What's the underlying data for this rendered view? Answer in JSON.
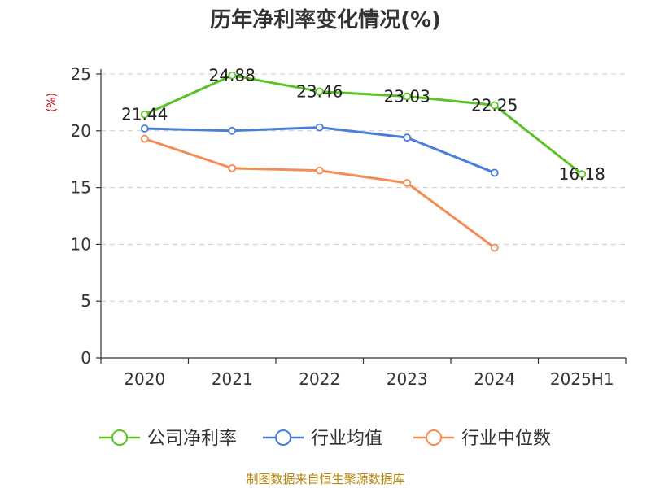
{
  "chart_data": {
    "type": "line",
    "title": "历年净利率变化情况(%)",
    "ylabel": "(%)",
    "categories": [
      "2020",
      "2021",
      "2022",
      "2023",
      "2024",
      "2025H1"
    ],
    "ylim": [
      0,
      25
    ],
    "yticks": [
      0,
      5,
      10,
      15,
      20,
      25
    ],
    "grid": true,
    "legend_position": "bottom",
    "series": [
      {
        "name": "公司净利率",
        "color": "#5bc225",
        "values": [
          21.44,
          24.88,
          23.46,
          23.03,
          22.25,
          16.18
        ],
        "show_labels": true
      },
      {
        "name": "行业均值",
        "color": "#4a7fd9",
        "values": [
          20.2,
          20.0,
          20.3,
          19.4,
          16.3,
          null
        ],
        "show_labels": false
      },
      {
        "name": "行业中位数",
        "color": "#f58c54",
        "values": [
          19.3,
          16.7,
          16.5,
          15.4,
          9.7,
          null
        ],
        "show_labels": false
      }
    ]
  },
  "footer": "制图数据来自恒生聚源数据库"
}
